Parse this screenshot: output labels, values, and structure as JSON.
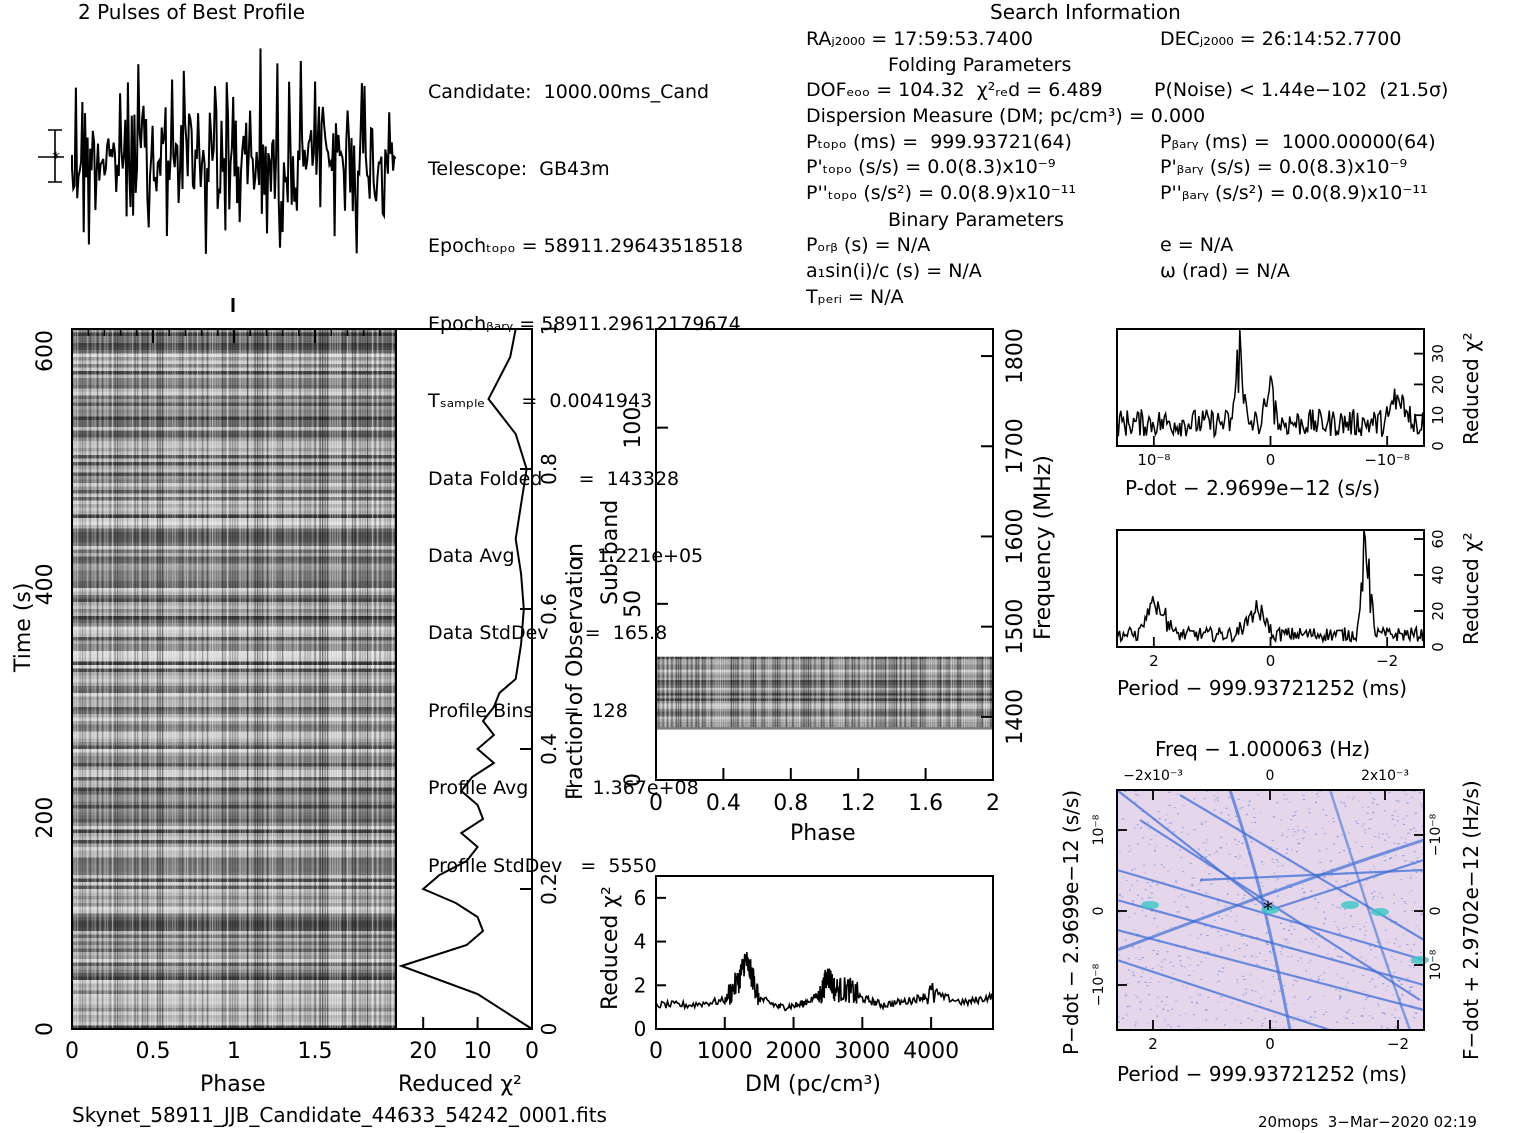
{
  "header": {
    "left_title": "2 Pulses of Best Profile",
    "right_title": "Search Information",
    "folding_title": "Folding Parameters",
    "binary_title": "Binary Parameters"
  },
  "candidate_info": [
    "Candidate:  1000.00ms_Cand",
    "Telescope:  GB43m",
    "Epochₜₒₚₒ = 58911.29643518518",
    "Epochᵦₐᵣᵧ = 58911.29612179674",
    "Tₛₐₘₚₗₑ      =  0.0041943",
    "Data Folded      =  143328",
    "Data Avg         =  1.221e+05",
    "Data StdDev      =  165.8",
    "Profile Bins     =  128",
    "Profile Avg      =  1.367e+08",
    "Profile StdDev   =  5550"
  ],
  "search_info": {
    "ra": "RAⱼ₂₀₀₀ = 17:59:53.7400",
    "dec": "DECⱼ₂₀₀₀ = 26:14:52.7700",
    "dof": "DOFₑₒₒ = 104.32  χ²ᵣₑd = 6.489",
    "pnoise": "P(Noise) < 1.44e−102  (21.5σ)",
    "dm": "Dispersion Measure (DM; pc/cm³) = 0.000",
    "ptopo": "Pₜₒₚₒ (ms) =  999.93721(64)",
    "pbary": "Pᵦₐᵣᵧ (ms) =  1000.00000(64)",
    "pdtopo": "P'ₜₒₚₒ (s/s) = 0.0(8.3)x10⁻⁹",
    "pdbary": "P'ᵦₐᵣᵧ (s/s) = 0.0(8.3)x10⁻⁹",
    "pddtopo": "P''ₜₒₚₒ (s/s²) = 0.0(8.9)x10⁻¹¹",
    "pddbary": "P''ᵦₐᵣᵧ (s/s²) = 0.0(8.9)x10⁻¹¹",
    "porb": "Pₒᵣᵦ (s) = N/A",
    "ecc": "e = N/A",
    "asini": "a₁sin(i)/c (s) = N/A",
    "omega": "ω (rad) = N/A",
    "tperi": "Tₚₑᵣᵢ = N/A"
  },
  "footer": {
    "filename": "Skynet_58911_JJB_Candidate_44633_54242_0001.fits",
    "stamp": "20mops  3−Mar−2020 02:19"
  },
  "chart_data": [
    {
      "name": "profile",
      "type": "line",
      "title": "2 Pulses of Best Profile",
      "xlim": [
        0,
        2
      ],
      "note": "noise-like profile, no axes labels"
    },
    {
      "name": "time-phase",
      "type": "heatmap",
      "xlabel": "Phase",
      "ylabel": "Time (s)",
      "xlim": [
        0,
        2
      ],
      "ylim": [
        0,
        600
      ],
      "xticks": [
        "0",
        "0.5",
        "1",
        "1.5"
      ],
      "yticks": [
        "0",
        "200",
        "400",
        "600"
      ]
    },
    {
      "name": "time-chi2",
      "type": "line",
      "xlabel": "Reduced χ²",
      "ylabel_right": "Fraction of Observation",
      "xlim": [
        25,
        0
      ],
      "ylim": [
        0,
        1
      ],
      "xticks": [
        "20",
        "10",
        "0"
      ],
      "yticks_right": [
        "0",
        "0.2",
        "0.4",
        "0.6",
        "0.8",
        "1"
      ],
      "fraction": [
        0,
        0.02,
        0.05,
        0.07,
        0.09,
        0.1,
        0.12,
        0.14,
        0.16,
        0.18,
        0.2,
        0.22,
        0.24,
        0.26,
        0.28,
        0.3,
        0.32,
        0.34,
        0.36,
        0.38,
        0.4,
        0.42,
        0.44,
        0.46,
        0.48,
        0.5,
        0.55,
        0.6,
        0.65,
        0.7,
        0.75,
        0.8,
        0.85,
        0.88,
        0.9,
        0.93,
        0.96,
        1
      ],
      "chi2": [
        0,
        4,
        10,
        17,
        24,
        20,
        12,
        9,
        10,
        14,
        20,
        17,
        12,
        10,
        13,
        9,
        10,
        13,
        11,
        7,
        10,
        7,
        9,
        7,
        6,
        3,
        2,
        1.5,
        2,
        3,
        2,
        1,
        3,
        6,
        8,
        6,
        4,
        3
      ]
    },
    {
      "name": "subband-phase",
      "type": "heatmap",
      "xlabel": "Phase",
      "ylabel": "Sub-band",
      "ylabel_right": "Frequency (MHz)",
      "xlim": [
        0,
        2
      ],
      "ylim": [
        0,
        128
      ],
      "freq_lim": [
        1330,
        1830
      ],
      "xticks": [
        "0",
        "0.4",
        "0.8",
        "1.2",
        "1.6",
        "2"
      ],
      "yticks": [
        "0",
        "50",
        "100"
      ],
      "yticks_right": [
        "1400",
        "1500",
        "1600",
        "1700",
        "1800"
      ],
      "band_subbands": [
        15,
        35
      ]
    },
    {
      "name": "dm-chi2",
      "type": "line",
      "xlabel": "DM (pc/cm³)",
      "ylabel": "Reduced χ²",
      "xlim": [
        0,
        4900
      ],
      "ylim": [
        0,
        7
      ],
      "xticks": [
        "0",
        "1000",
        "2000",
        "3000",
        "4000"
      ],
      "yticks": [
        "0",
        "2",
        "4",
        "6"
      ],
      "dm": [
        0,
        500,
        1000,
        1200,
        1300,
        1400,
        1500,
        1800,
        2100,
        2400,
        2500,
        2600,
        2800,
        3000,
        3300,
        3700,
        4000,
        4500,
        4900
      ],
      "chi2": [
        1.1,
        1.1,
        1.3,
        2.2,
        3.2,
        2.4,
        1.4,
        1.0,
        1.1,
        1.6,
        2.5,
        1.8,
        1.8,
        1.4,
        1.1,
        1.3,
        1.6,
        1.2,
        1.5
      ]
    },
    {
      "name": "pdot-chi2",
      "type": "line",
      "xlabel": "P-dot − 2.9699e−12 (s/s)",
      "ylabel_right": "Reduced χ²",
      "ylim": [
        0,
        38
      ],
      "yticks_right": [
        "0",
        "10",
        "20",
        "30"
      ],
      "xticks": [
        "10⁻⁸",
        "0",
        "−10⁻⁸"
      ]
    },
    {
      "name": "period-chi2",
      "type": "line",
      "xlabel": "Period − 999.93721252 (ms)",
      "ylabel_right": "Reduced χ²",
      "ylim": [
        0,
        65
      ],
      "yticks_right": [
        "0",
        "20",
        "40",
        "60"
      ],
      "xticks": [
        "2",
        "0",
        "−2"
      ]
    },
    {
      "name": "period-pdot",
      "type": "heatmap",
      "title": "Freq − 1.000063 (Hz)",
      "xlabel": "Period − 999.93721252 (ms)",
      "ylabel": "P−dot − 2.9699e−12 (s/s)",
      "ylabel_right": "F−dot + 2.9702e−12 (Hz/s)",
      "xticks": [
        "2",
        "0",
        "−2"
      ],
      "xticks_top": [
        "−2x10⁻³",
        "0",
        "2x10⁻³"
      ],
      "yticks": [
        "10⁻⁸",
        "0",
        "−10⁻⁸"
      ],
      "yticks_right": [
        "−10⁻⁸",
        "0",
        "10⁻⁸"
      ],
      "colors": {
        "background": "#e8d8ee",
        "ridge": "#3f6fd6",
        "peak": "#39c7c4"
      }
    }
  ]
}
